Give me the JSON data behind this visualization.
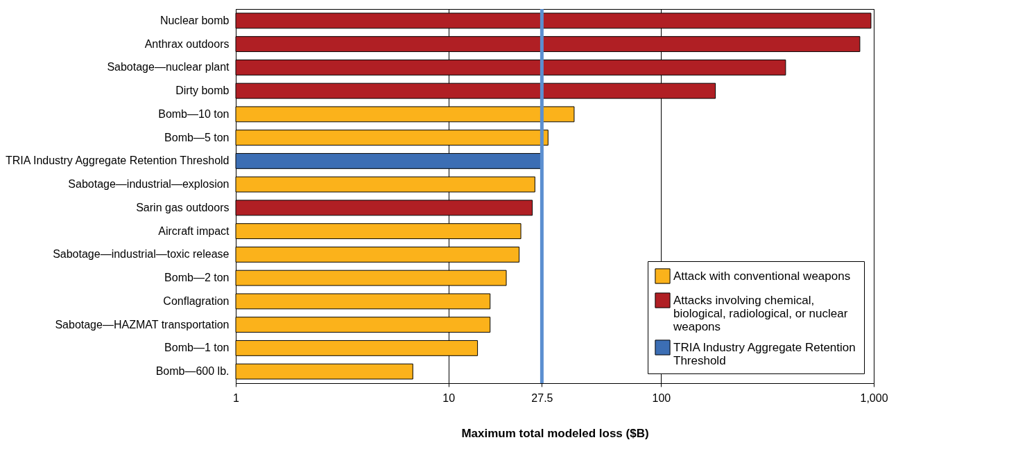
{
  "chart_data": {
    "type": "bar",
    "orientation": "horizontal",
    "log": "x",
    "xlabel": "Maximum total modeled loss ($B)",
    "categories": [
      "Nuclear bomb",
      "Anthrax outdoors",
      "Sabotage—nuclear plant",
      "Dirty bomb",
      "Bomb—10 ton",
      "Bomb—5 ton",
      "TRIA Industry Aggregate Retention Threshold",
      "Sabotage—industrial—explosion",
      "Sarin gas outdoors",
      "Aircraft impact",
      "Sabotage—industrial—toxic release",
      "Bomb—2 ton",
      "Conflagration",
      "Sabotage—HAZMAT transportation",
      "Bomb—1 ton",
      "Bomb—600 lb."
    ],
    "series": [
      {
        "name": "Attack with conventional weapons",
        "color": "#fbb21b",
        "values": [
          null,
          null,
          null,
          null,
          39,
          29.4,
          null,
          25.5,
          null,
          21.9,
          21.5,
          18.7,
          15.7,
          15.7,
          13.7,
          6.8
        ]
      },
      {
        "name": "Attacks involving chemical, biological, radiological, or nuclear weapons",
        "color": "#b01f24",
        "values": [
          970,
          860,
          385,
          180,
          null,
          null,
          null,
          null,
          24.8,
          null,
          null,
          null,
          null,
          null,
          null,
          null
        ]
      },
      {
        "name": "TRIA Industry Aggregate Retention Threshold",
        "color": "#3c6eb4",
        "values": [
          null,
          null,
          null,
          null,
          null,
          null,
          27.5,
          null,
          null,
          null,
          null,
          null,
          null,
          null,
          null,
          null
        ]
      }
    ],
    "xlim": [
      1,
      1000
    ],
    "xticks": [
      1,
      10,
      27.5,
      100,
      {
        "value": 1000,
        "label": "1,000"
      }
    ],
    "ref_lines": [
      {
        "axis": "x",
        "value": 27.5,
        "color": "#5b8fd0"
      }
    ],
    "grid": "x",
    "legend": "bottom right"
  }
}
